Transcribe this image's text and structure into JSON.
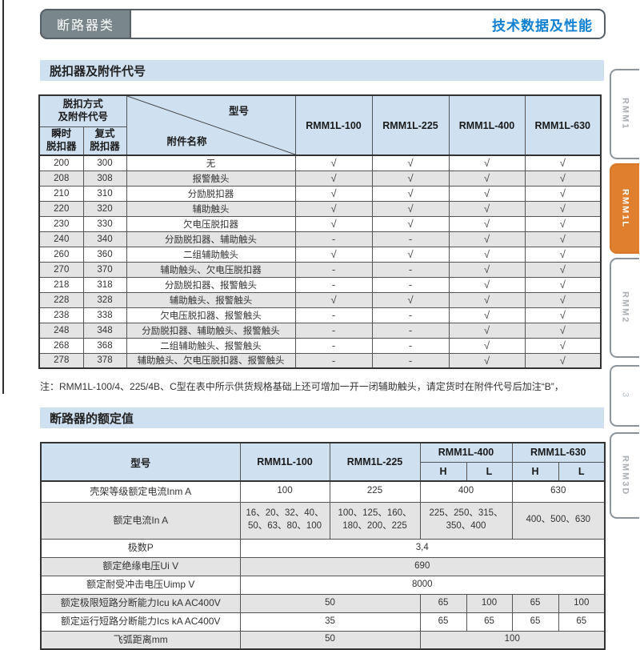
{
  "header": {
    "category": "断路器类",
    "title": "技术数据及性能"
  },
  "section1": {
    "title": "脱扣器及附件代号",
    "table": {
      "corner_label": "脱扣方式\n及附件代号",
      "sub_headers": [
        "瞬时\n脱扣器",
        "复式\n脱扣器"
      ],
      "diagonal_top": "型号",
      "diagonal_bottom": "附件名称",
      "models": [
        "RMM1L-100",
        "RMM1L-225",
        "RMM1L-400",
        "RMM1L-630"
      ],
      "rows": [
        {
          "instant": "200",
          "compound": "300",
          "accessory": "无",
          "marks": [
            "√",
            "√",
            "√",
            "√"
          ]
        },
        {
          "instant": "208",
          "compound": "308",
          "accessory": "报警触头",
          "marks": [
            "√",
            "√",
            "√",
            "√"
          ]
        },
        {
          "instant": "210",
          "compound": "310",
          "accessory": "分励脱扣器",
          "marks": [
            "√",
            "√",
            "√",
            "√"
          ]
        },
        {
          "instant": "220",
          "compound": "320",
          "accessory": "辅助触头",
          "marks": [
            "√",
            "√",
            "√",
            "√"
          ]
        },
        {
          "instant": "230",
          "compound": "330",
          "accessory": "欠电压脱扣器",
          "marks": [
            "√",
            "√",
            "√",
            "√"
          ]
        },
        {
          "instant": "240",
          "compound": "340",
          "accessory": "分励脱扣器、辅助触头",
          "marks": [
            "-",
            "-",
            "√",
            "√"
          ]
        },
        {
          "instant": "260",
          "compound": "360",
          "accessory": "二组辅助触头",
          "marks": [
            "√",
            "√",
            "√",
            "√"
          ]
        },
        {
          "instant": "270",
          "compound": "370",
          "accessory": "辅助触头、欠电压脱扣器",
          "marks": [
            "-",
            "-",
            "√",
            "√"
          ]
        },
        {
          "instant": "218",
          "compound": "318",
          "accessory": "分励脱扣器、报警触头",
          "marks": [
            "-",
            "-",
            "√",
            "√"
          ]
        },
        {
          "instant": "228",
          "compound": "328",
          "accessory": "辅助触头、报警触头",
          "marks": [
            "√",
            "√",
            "√",
            "√"
          ]
        },
        {
          "instant": "238",
          "compound": "338",
          "accessory": "欠电压脱扣器、报警触头",
          "marks": [
            "-",
            "-",
            "√",
            "√"
          ]
        },
        {
          "instant": "248",
          "compound": "348",
          "accessory": "分励脱扣器、辅助触头、报警触头",
          "marks": [
            "-",
            "-",
            "√",
            "√"
          ]
        },
        {
          "instant": "268",
          "compound": "368",
          "accessory": "二组辅助触头、报警触头",
          "marks": [
            "-",
            "-",
            "√",
            "√"
          ]
        },
        {
          "instant": "278",
          "compound": "378",
          "accessory": "辅助触头、欠电压脱扣器、报警触头",
          "marks": [
            "-",
            "-",
            "√",
            "√"
          ]
        }
      ]
    },
    "note": "注：RMM1L-100/4、225/4B、C型在表中所示供货规格基础上还可增加一开一闭辅助触头，请定货时在附件代号后加注“B”，"
  },
  "section2": {
    "title": "断路器的额定值",
    "table": {
      "model_label": "型号",
      "models": [
        "RMM1L-100",
        "RMM1L-225",
        "RMM1L-400",
        "RMM1L-630"
      ],
      "hl": [
        "H",
        "L",
        "H",
        "L"
      ],
      "rows": [
        {
          "label": "壳架等级额定电流Inm A",
          "cells": [
            {
              "t": "100",
              "span": 1
            },
            {
              "t": "225",
              "span": 1
            },
            {
              "t": "400",
              "span": 2
            },
            {
              "t": "630",
              "span": 2
            }
          ]
        },
        {
          "label": "额定电流In A",
          "tall": true,
          "cells": [
            {
              "t": "16、20、32、40、50、63、80、100",
              "span": 1
            },
            {
              "t": "100、125、160、180、200、225",
              "span": 1
            },
            {
              "t": "225、250、315、350、400",
              "span": 2
            },
            {
              "t": "400、500、630",
              "span": 2
            }
          ]
        },
        {
          "label": "极数P",
          "cells": [
            {
              "t": "3,4",
              "span": 6
            }
          ]
        },
        {
          "label": "额定绝缘电压Ui V",
          "cells": [
            {
              "t": "690",
              "span": 6
            }
          ]
        },
        {
          "label": "额定耐受冲击电压Uimp V",
          "cells": [
            {
              "t": "8000",
              "span": 6
            }
          ]
        },
        {
          "label": "额定极限短路分断能力Icu kA AC400V",
          "cells": [
            {
              "t": "50",
              "span": 2
            },
            {
              "t": "65",
              "span": 1
            },
            {
              "t": "100",
              "span": 1
            },
            {
              "t": "65",
              "span": 1
            },
            {
              "t": "100",
              "span": 1
            }
          ]
        },
        {
          "label": "额定运行短路分断能力Ics kA AC400V",
          "cells": [
            {
              "t": "35",
              "span": 2
            },
            {
              "t": "65",
              "span": 1
            },
            {
              "t": "65",
              "span": 1
            },
            {
              "t": "65",
              "span": 1
            },
            {
              "t": "65",
              "span": 1
            }
          ]
        },
        {
          "label": "飞弧距离mm",
          "cells": [
            {
              "t": "50",
              "span": 2
            },
            {
              "t": "100",
              "span": 4
            }
          ]
        }
      ]
    }
  },
  "sidebar": {
    "tabs": [
      {
        "label": "RMM1",
        "active": false
      },
      {
        "label": "RMM1L",
        "active": true
      },
      {
        "label": "RMM2",
        "active": false
      },
      {
        "label": "3",
        "active": false
      },
      {
        "label": "RMM3D",
        "active": false
      }
    ]
  },
  "colors": {
    "accent_blue": "#1080d0",
    "active_tab_orange": "#e0802e",
    "section_bar_bg": "#cfe0f0",
    "table_header_bg": "#cfe0f0",
    "row_alt_bg": "#e4e4e4",
    "category_box_gray": "#79868c"
  }
}
